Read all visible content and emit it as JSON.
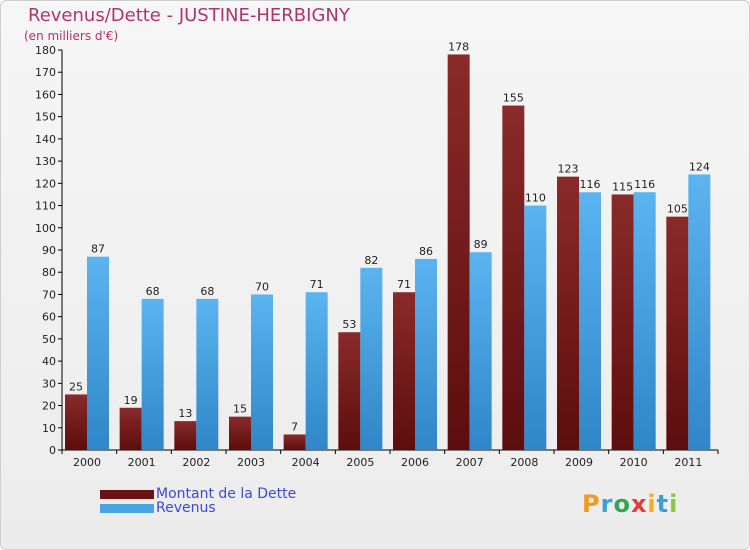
{
  "chart_data": {
    "type": "bar",
    "title": "Revenus/Dette - JUSTINE-HERBIGNY",
    "subtitle": "(en milliers d'€)",
    "categories": [
      "2000",
      "2001",
      "2002",
      "2003",
      "2004",
      "2005",
      "2006",
      "2007",
      "2008",
      "2009",
      "2010",
      "2011"
    ],
    "series": [
      {
        "name": "Montant de la Dette",
        "color": "#7a1c1c",
        "values": [
          25,
          19,
          13,
          15,
          7,
          53,
          71,
          178,
          155,
          123,
          115,
          105
        ]
      },
      {
        "name": "Revenus",
        "color": "#49a4e6",
        "values": [
          87,
          68,
          68,
          70,
          71,
          82,
          86,
          89,
          110,
          116,
          116,
          124
        ]
      }
    ],
    "ylim": [
      0,
      180
    ],
    "yticks": [
      0,
      10,
      20,
      30,
      40,
      50,
      60,
      70,
      80,
      90,
      100,
      110,
      120,
      130,
      140,
      150,
      160,
      170,
      180
    ],
    "xlabel": "",
    "ylabel": "",
    "grid": false,
    "legend_position": "bottom-left"
  },
  "legend": {
    "debt_label": "Montant de la Dette",
    "revenue_label": "Revenus"
  },
  "logo": {
    "letters": [
      "P",
      "r",
      "o",
      "x",
      "i",
      "t",
      "i"
    ],
    "colors": [
      "#f29a1e",
      "#3aa0d6",
      "#2fa84f",
      "#e53b3b",
      "#f2b01e",
      "#3aa0d6",
      "#8cc63f"
    ]
  }
}
